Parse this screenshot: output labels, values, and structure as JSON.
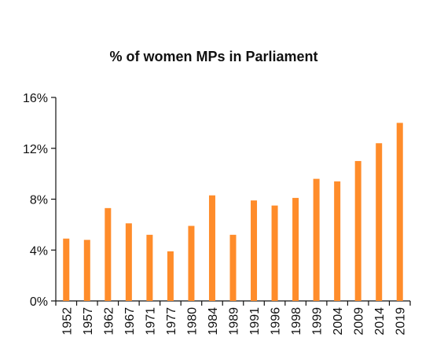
{
  "chart_data": {
    "type": "bar",
    "title": "% of women MPs in Parliament",
    "xlabel": "",
    "ylabel": "",
    "categories": [
      "1952",
      "1957",
      "1962",
      "1967",
      "1971",
      "1977",
      "1980",
      "1984",
      "1989",
      "1991",
      "1996",
      "1998",
      "1999",
      "2004",
      "2009",
      "2014",
      "2019"
    ],
    "values": [
      4.9,
      4.8,
      7.3,
      6.1,
      5.2,
      3.9,
      5.9,
      8.3,
      5.2,
      7.9,
      7.5,
      8.1,
      9.6,
      9.4,
      11.0,
      12.4,
      14.0
    ],
    "ylim": [
      0,
      16
    ],
    "yticks": [
      0,
      4,
      8,
      12,
      16
    ],
    "ytick_labels": [
      "0%",
      "4%",
      "8%",
      "12%",
      "16%"
    ],
    "grid": false,
    "legend": "none",
    "colors": {
      "bar": "#ff8c2a",
      "axis": "#111111",
      "text": "#111111",
      "background": "#ffffff"
    }
  }
}
